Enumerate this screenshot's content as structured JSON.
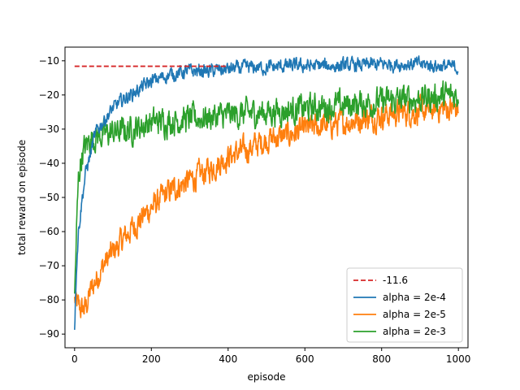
{
  "chart_data": {
    "type": "line",
    "title": "",
    "xlabel": "episode",
    "ylabel": "total reward on episode",
    "xlim": [
      -25,
      1025
    ],
    "ylim": [
      -94,
      -6
    ],
    "xticks": [
      0,
      200,
      400,
      600,
      800,
      1000
    ],
    "yticks": [
      -90,
      -80,
      -70,
      -60,
      -50,
      -40,
      -30,
      -20,
      -10
    ],
    "legend_position": "lower-right",
    "reference_line": {
      "name": "-11.6",
      "y": -11.6,
      "x_range": [
        0,
        400
      ],
      "color": "#d62728",
      "style": "dashed"
    },
    "series": [
      {
        "name": "alpha = 2e-4",
        "color": "#1f77b4",
        "x": [
          0,
          5,
          10,
          15,
          20,
          30,
          40,
          50,
          60,
          80,
          100,
          130,
          160,
          200,
          250,
          300,
          350,
          400,
          450,
          500,
          550,
          600,
          700,
          800,
          900,
          1000
        ],
        "y": [
          -88,
          -70,
          -60,
          -55,
          -50,
          -42,
          -38,
          -33,
          -30,
          -27,
          -24,
          -21,
          -19,
          -16,
          -14,
          -13,
          -13,
          -12.5,
          -12,
          -12,
          -11.5,
          -11.5,
          -11.5,
          -11,
          -11,
          -12
        ],
        "noise": 1.6
      },
      {
        "name": "alpha = 2e-5",
        "color": "#ff7f0e",
        "x": [
          0,
          10,
          20,
          30,
          40,
          60,
          80,
          100,
          150,
          200,
          250,
          300,
          350,
          400,
          450,
          500,
          550,
          600,
          650,
          700,
          750,
          800,
          850,
          900,
          950,
          1000
        ],
        "y": [
          -80,
          -82,
          -83,
          -82,
          -78,
          -73,
          -69,
          -66,
          -59,
          -53,
          -48,
          -45,
          -42,
          -38,
          -36,
          -33,
          -32,
          -30,
          -29,
          -28,
          -27,
          -26,
          -25,
          -25,
          -24,
          -24
        ],
        "noise": 3.0
      },
      {
        "name": "alpha = 2e-3",
        "color": "#2ca02c",
        "x": [
          0,
          5,
          10,
          15,
          20,
          30,
          40,
          60,
          100,
          150,
          200,
          300,
          400,
          500,
          600,
          700,
          800,
          900,
          1000
        ],
        "y": [
          -80,
          -60,
          -45,
          -40,
          -37,
          -35,
          -33,
          -32,
          -31,
          -30,
          -28,
          -27,
          -26,
          -25,
          -24,
          -23,
          -22,
          -21,
          -20
        ],
        "noise": 3.2
      }
    ]
  }
}
